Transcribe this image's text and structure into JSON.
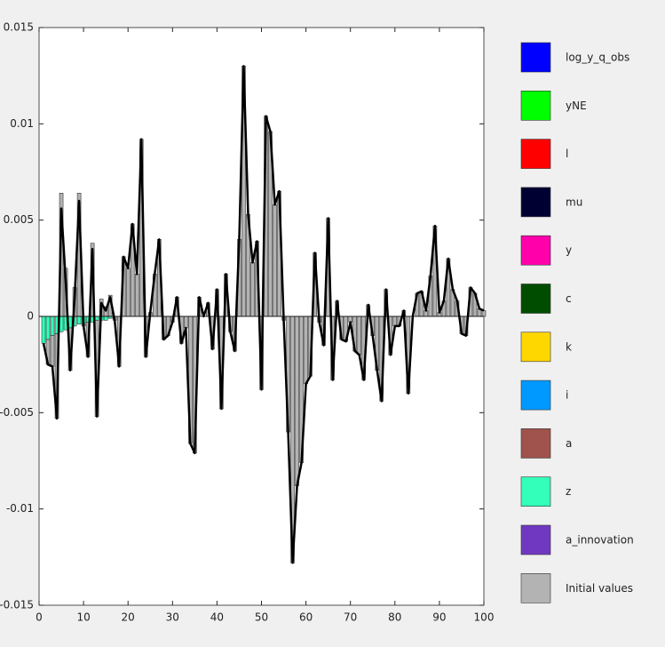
{
  "chart_data": {
    "type": "bar",
    "stacked": true,
    "x": [
      1,
      2,
      3,
      4,
      5,
      6,
      7,
      8,
      9,
      10,
      11,
      12,
      13,
      14,
      15,
      16,
      17,
      18,
      19,
      20,
      21,
      22,
      23,
      24,
      25,
      26,
      27,
      28,
      29,
      30,
      31,
      32,
      33,
      34,
      35,
      36,
      37,
      38,
      39,
      40,
      41,
      42,
      43,
      44,
      45,
      46,
      47,
      48,
      49,
      50,
      51,
      52,
      53,
      54,
      55,
      56,
      57,
      58,
      59,
      60,
      61,
      62,
      63,
      64,
      65,
      66,
      67,
      68,
      69,
      70,
      71,
      72,
      73,
      74,
      75,
      76,
      77,
      78,
      79,
      80,
      81,
      82,
      83,
      84,
      85,
      86,
      87,
      88,
      89,
      90,
      91,
      92,
      93,
      94,
      95,
      96,
      97,
      98,
      99,
      100
    ],
    "xlim": [
      0,
      100
    ],
    "xticks": [
      0,
      10,
      20,
      30,
      40,
      50,
      60,
      70,
      80,
      90,
      100
    ],
    "ylim": [
      -0.015,
      0.015
    ],
    "yticks": [
      0.015,
      0.01,
      0.005,
      0,
      -0.005,
      -0.01,
      -0.015
    ],
    "legend": "outside right",
    "series": [
      {
        "name": "log_y_q_obs",
        "color": "#0000ff",
        "values": [
          0,
          0,
          0,
          0,
          0,
          0,
          0,
          0,
          0,
          0,
          0,
          0,
          0,
          0,
          0,
          0,
          0,
          0,
          0,
          0,
          0,
          0,
          0,
          0,
          0,
          0,
          0,
          0,
          0,
          0,
          0,
          0,
          0,
          0,
          0,
          0,
          0,
          0,
          0,
          0,
          0,
          0,
          0,
          0,
          0,
          0,
          0,
          0,
          0,
          0,
          0,
          0,
          0,
          0,
          0,
          0,
          0,
          0,
          0,
          0,
          0,
          0,
          0,
          0,
          0,
          0,
          0,
          0,
          0,
          0,
          0,
          0,
          0,
          0,
          0,
          0,
          0,
          0,
          0,
          0,
          0,
          0,
          0,
          0,
          0,
          0,
          0,
          0,
          0,
          0,
          0,
          0,
          0,
          0,
          0,
          0,
          0,
          0,
          0,
          0
        ]
      },
      {
        "name": "yNE",
        "color": "#00ff00",
        "values": [
          0,
          0,
          0,
          0,
          0,
          0,
          0,
          0,
          0,
          0,
          0,
          0,
          0,
          0,
          0,
          0,
          0,
          0,
          0,
          0,
          0,
          0,
          0,
          0,
          0,
          0,
          0,
          0,
          0,
          0,
          0,
          0,
          0,
          0,
          0,
          0,
          0,
          0,
          0,
          0,
          0,
          0,
          0,
          0,
          0,
          0,
          0,
          0,
          0,
          0,
          0,
          0,
          0,
          0,
          0,
          0,
          0,
          0,
          0,
          0,
          0,
          0,
          0,
          0,
          0,
          0,
          0,
          0,
          0,
          0,
          0,
          0,
          0,
          0,
          0,
          0,
          0,
          0,
          0,
          0,
          0,
          0,
          0,
          0,
          0,
          0,
          0,
          0,
          0,
          0,
          0,
          0,
          0,
          0,
          0,
          0,
          0,
          0,
          0,
          0
        ]
      },
      {
        "name": "l",
        "color": "#ff0000",
        "values": [
          0,
          0,
          0,
          0,
          0,
          0,
          0,
          0,
          0,
          0,
          0,
          0,
          0,
          0,
          0,
          0,
          0,
          0,
          0,
          0,
          0,
          0,
          0,
          0,
          0,
          0,
          0,
          0,
          0,
          0,
          0,
          0,
          0,
          0,
          0,
          0,
          0,
          0,
          0,
          0,
          0,
          0,
          0,
          0,
          0,
          0,
          0,
          0,
          0,
          0,
          0,
          0,
          0,
          0,
          0,
          0,
          0,
          0,
          0,
          0,
          0,
          0,
          0,
          0,
          0,
          0,
          0,
          0,
          0,
          0,
          0,
          0,
          0,
          0,
          0,
          0,
          0,
          0,
          0,
          0,
          0,
          0,
          0,
          0,
          0,
          0,
          0,
          0,
          0,
          0,
          0,
          0,
          0,
          0,
          0,
          0,
          0,
          0,
          0,
          0
        ]
      },
      {
        "name": "mu",
        "color": "#000033",
        "values": [
          0,
          0,
          0,
          0,
          0,
          0,
          0,
          0,
          0,
          0,
          0,
          0,
          0,
          0,
          0,
          0,
          0,
          0,
          0,
          0,
          0,
          0,
          0,
          0,
          0,
          0,
          0,
          0,
          0,
          0,
          0,
          0,
          0,
          0,
          0,
          0,
          0,
          0,
          0,
          0,
          0,
          0,
          0,
          0,
          0,
          0,
          0,
          0,
          0,
          0,
          0,
          0,
          0,
          0,
          0,
          0,
          0,
          0,
          0,
          0,
          0,
          0,
          0,
          0,
          0,
          0,
          0,
          0,
          0,
          0,
          0,
          0,
          0,
          0,
          0,
          0,
          0,
          0,
          0,
          0,
          0,
          0,
          0,
          0,
          0,
          0,
          0,
          0,
          0,
          0,
          0,
          0,
          0,
          0,
          0,
          0,
          0,
          0,
          0,
          0
        ]
      },
      {
        "name": "y",
        "color": "#ff00aa",
        "values": [
          0,
          0,
          0,
          0,
          0,
          0,
          0,
          0,
          0,
          0,
          0,
          0,
          0,
          0,
          0,
          0,
          0,
          0,
          0,
          0,
          0,
          0,
          0,
          0,
          0,
          0,
          0,
          0,
          0,
          0,
          0,
          0,
          0,
          0,
          0,
          0,
          0,
          0,
          0,
          0,
          0,
          0,
          0,
          0,
          0,
          0,
          0,
          0,
          0,
          0,
          0,
          0,
          0,
          0,
          0,
          0,
          0,
          0,
          0,
          0,
          0,
          0,
          0,
          0,
          0,
          0,
          0,
          0,
          0,
          0,
          0,
          0,
          0,
          0,
          0,
          0,
          0,
          0,
          0,
          0,
          0,
          0,
          0,
          0,
          0,
          0,
          0,
          0,
          0,
          0,
          0,
          0,
          0,
          0,
          0,
          0,
          0,
          0,
          0,
          0
        ]
      },
      {
        "name": "c",
        "color": "#004d00",
        "values": [
          0,
          0,
          0,
          0,
          0,
          0,
          0,
          0,
          0,
          0,
          0,
          0,
          0,
          0,
          0,
          0,
          0,
          0,
          0,
          0,
          0,
          0,
          0,
          0,
          0,
          0,
          0,
          0,
          0,
          0,
          0,
          0,
          0,
          0,
          0,
          0,
          0,
          0,
          0,
          0,
          0,
          0,
          0,
          0,
          0,
          0,
          0,
          0,
          0,
          0,
          0,
          0,
          0,
          0,
          0,
          0,
          0,
          0,
          0,
          0,
          0,
          0,
          0,
          0,
          0,
          0,
          0,
          0,
          0,
          0,
          0,
          0,
          0,
          0,
          0,
          0,
          0,
          0,
          0,
          0,
          0,
          0,
          0,
          0,
          0,
          0,
          0,
          0,
          0,
          0,
          0,
          0,
          0,
          0,
          0,
          0,
          0,
          0,
          0,
          0
        ]
      },
      {
        "name": "k",
        "color": "#ffd700",
        "values": [
          0,
          0,
          0,
          0,
          0,
          0,
          0,
          0,
          0,
          0,
          0,
          0,
          0,
          0,
          0,
          0,
          0,
          0,
          0,
          0,
          0,
          0,
          0,
          0,
          0,
          0,
          0,
          0,
          0,
          0,
          0,
          0,
          0,
          0,
          0,
          0,
          0,
          0,
          0,
          0,
          0,
          0,
          0,
          0,
          0,
          0,
          0,
          0,
          0,
          0,
          0,
          0,
          0,
          0,
          0,
          0,
          0,
          0,
          0,
          0,
          0,
          0,
          0,
          0,
          0,
          0,
          0,
          0,
          0,
          0,
          0,
          0,
          0,
          0,
          0,
          0,
          0,
          0,
          0,
          0,
          0,
          0,
          0,
          0,
          0,
          0,
          0,
          0,
          0,
          0,
          0,
          0,
          0,
          0,
          0,
          0,
          0,
          0,
          0,
          0
        ]
      },
      {
        "name": "i",
        "color": "#0099ff",
        "values": [
          0,
          0,
          0,
          0,
          0,
          0,
          0,
          0,
          0,
          0,
          0,
          0,
          0,
          0,
          0,
          0,
          0,
          0,
          0,
          0,
          0,
          0,
          0,
          0,
          0,
          0,
          0,
          0,
          0,
          0,
          0,
          0,
          0,
          0,
          0,
          0,
          0,
          0,
          0,
          0,
          0,
          0,
          0,
          0,
          0,
          0,
          0,
          0,
          0,
          0,
          0,
          0,
          0,
          0,
          0,
          0,
          0,
          0,
          0,
          0,
          0,
          0,
          0,
          0,
          0,
          0,
          0,
          0,
          0,
          0,
          0,
          0,
          0,
          0,
          0,
          0,
          0,
          0,
          0,
          0,
          0,
          0,
          0,
          0,
          0,
          0,
          0,
          0,
          0,
          0,
          0,
          0,
          0,
          0,
          0,
          0,
          0,
          0,
          0,
          0
        ]
      },
      {
        "name": "a",
        "color": "#a0524c",
        "values": [
          0,
          0,
          0,
          0,
          0,
          0,
          0,
          0,
          0,
          0,
          0,
          0,
          0,
          0,
          0,
          0,
          0,
          0,
          0,
          0,
          0,
          0,
          0,
          0,
          0,
          0,
          0,
          0,
          0,
          0,
          0,
          0,
          0,
          0,
          0,
          0,
          0,
          0,
          0,
          0,
          0,
          0,
          0,
          0,
          0,
          0,
          0,
          0,
          0,
          0,
          0,
          0,
          0,
          0,
          0,
          0,
          0,
          0,
          0,
          0,
          0,
          0,
          0,
          0,
          0,
          0,
          0,
          0,
          0,
          0,
          0,
          0,
          0,
          0,
          0,
          0,
          0,
          0,
          0,
          0,
          0,
          0,
          0,
          0,
          0,
          0,
          0,
          0,
          0,
          0,
          0,
          0,
          0,
          0,
          0,
          0,
          0,
          0,
          0,
          0
        ]
      },
      {
        "name": "z",
        "color": "#33ffbb",
        "values": [
          -0.0014,
          -0.0012,
          -0.001,
          -0.0009,
          -0.0008,
          -0.0007,
          -0.0006,
          -0.0005,
          -0.0004,
          -0.0004,
          -0.0003,
          -0.0003,
          -0.0002,
          -0.0002,
          -0.0002,
          -0.0001,
          0,
          0,
          0,
          0,
          0,
          0,
          0,
          0,
          0,
          0,
          0,
          0,
          0,
          0,
          0,
          0,
          0,
          0,
          0,
          0,
          0,
          0,
          0,
          0,
          0,
          0,
          0,
          0,
          0,
          0,
          0,
          0,
          0,
          0,
          0,
          0,
          0,
          0,
          0,
          0,
          0,
          0,
          0,
          0,
          0,
          0,
          0,
          0,
          0,
          0,
          0,
          0,
          0,
          0,
          0,
          0,
          0,
          0,
          0,
          0,
          0,
          0,
          0,
          0,
          0,
          0,
          0,
          0,
          0,
          0,
          0,
          0,
          0,
          0,
          0,
          0,
          0,
          0,
          0,
          0,
          0,
          0,
          0,
          0
        ]
      },
      {
        "name": "a_innovation",
        "color": "#7038c0",
        "values": [
          0,
          0,
          0,
          0,
          0,
          0,
          0,
          0,
          0,
          0,
          0,
          0,
          0,
          0,
          0,
          0,
          0,
          0,
          0,
          0,
          0,
          0,
          0,
          0,
          0,
          0,
          0,
          0,
          0,
          0,
          0,
          0,
          0,
          0,
          0,
          0,
          0,
          0,
          0,
          0,
          0,
          0,
          0,
          0,
          0,
          0,
          0,
          0,
          0,
          0,
          0,
          0,
          0,
          0,
          0,
          0,
          0,
          0,
          0,
          0,
          0,
          0,
          0,
          0,
          0,
          0,
          0,
          0,
          0,
          0,
          0,
          0,
          0,
          0,
          0,
          0,
          0,
          0,
          0,
          0,
          0,
          0,
          0,
          0,
          0,
          0,
          0,
          0,
          0,
          0,
          0,
          0,
          0,
          0,
          0,
          0,
          0,
          0,
          0,
          0
        ]
      },
      {
        "name": "Initial values",
        "color": "#b3b3b3",
        "values": [
          0,
          -0.0013,
          -0.0016,
          -0.0044,
          0.0064,
          0.0025,
          -0.0022,
          0.0015,
          0.0064,
          -0.0001,
          -0.0018,
          0.0038,
          -0.005,
          0.0009,
          0.0005,
          0.0011,
          -0.0002,
          -0.0026,
          0.0031,
          0.0025,
          0.0048,
          0.0022,
          0.0092,
          -0.0021,
          0.0002,
          0.0022,
          0.004,
          -0.0012,
          -0.001,
          -0.0003,
          0.001,
          -0.0014,
          -0.0006,
          -0.0066,
          -0.0071,
          0.001,
          0,
          0.0007,
          -0.0017,
          0.0014,
          -0.0048,
          0.0022,
          -0.0008,
          -0.0018,
          0.004,
          0.013,
          0.0053,
          0.0028,
          0.0039,
          -0.0038,
          0.0104,
          0.0096,
          0.0058,
          0.0065,
          -0.0002,
          -0.006,
          -0.0128,
          -0.0088,
          -0.0076,
          -0.0035,
          -0.0031,
          0.0033,
          -0.0003,
          -0.0015,
          0.0051,
          -0.0033,
          0.0008,
          -0.0012,
          -0.0013,
          -0.0003,
          -0.0018,
          -0.002,
          -0.0033,
          0.0006,
          -0.001,
          -0.0028,
          -0.0044,
          0.0014,
          -0.002,
          -0.0005,
          -0.0005,
          0.0003,
          -0.004,
          0,
          0.0012,
          0.0013,
          0.0003,
          0.0021,
          0.0047,
          0.0002,
          0.0008,
          0.003,
          0.0014,
          0.0008,
          -0.0009,
          -0.001,
          0.0015,
          0.0012,
          0.0004,
          0.0003
        ]
      }
    ]
  }
}
